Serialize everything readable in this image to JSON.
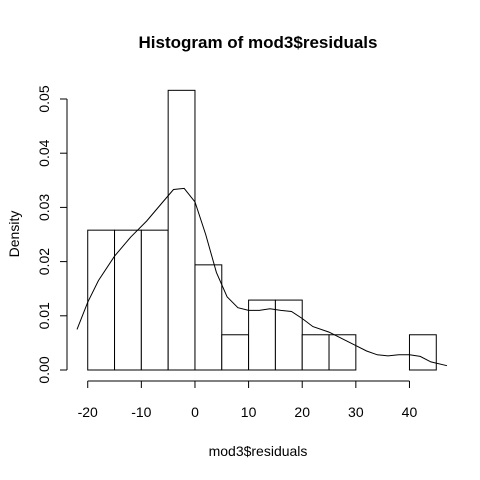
{
  "chart_data": {
    "type": "histogram",
    "title": "Histogram of mod3$residuals",
    "xlabel": "mod3$residuals",
    "ylabel": "Density",
    "xlim": [
      -22,
      47
    ],
    "ylim": [
      0,
      0.05
    ],
    "x_ticks": [
      -20,
      -10,
      0,
      10,
      20,
      30,
      40
    ],
    "y_ticks": [
      0.0,
      0.01,
      0.02,
      0.03,
      0.04,
      0.05
    ],
    "x_tick_labels": [
      "-20",
      "-10",
      "0",
      "10",
      "20",
      "30",
      "40"
    ],
    "y_tick_labels": [
      "0.00",
      "0.01",
      "0.02",
      "0.03",
      "0.04",
      "0.05"
    ],
    "grid": false,
    "legend": "none",
    "bars": [
      {
        "x0": -20,
        "x1": -15,
        "density": 0.0258
      },
      {
        "x0": -15,
        "x1": -10,
        "density": 0.0258
      },
      {
        "x0": -10,
        "x1": -5,
        "density": 0.0258
      },
      {
        "x0": -5,
        "x1": 0,
        "density": 0.0516
      },
      {
        "x0": 0,
        "x1": 5,
        "density": 0.0194
      },
      {
        "x0": 5,
        "x1": 10,
        "density": 0.0065
      },
      {
        "x0": 10,
        "x1": 15,
        "density": 0.0129
      },
      {
        "x0": 15,
        "x1": 20,
        "density": 0.0129
      },
      {
        "x0": 20,
        "x1": 25,
        "density": 0.0065
      },
      {
        "x0": 25,
        "x1": 30,
        "density": 0.0065
      },
      {
        "x0": 30,
        "x1": 35,
        "density": 0
      },
      {
        "x0": 35,
        "x1": 40,
        "density": 0
      },
      {
        "x0": 40,
        "x1": 45,
        "density": 0.0065
      }
    ],
    "density_curve": {
      "x": [
        -22,
        -20,
        -18,
        -15,
        -12,
        -9,
        -6,
        -4,
        -2,
        0,
        2,
        4,
        6,
        8,
        10,
        12,
        14,
        16,
        18,
        20,
        22,
        25,
        28,
        30,
        32,
        34,
        36,
        38,
        40,
        42,
        44,
        47
      ],
      "y": [
        0.0075,
        0.0125,
        0.0165,
        0.021,
        0.0245,
        0.0275,
        0.031,
        0.0333,
        0.0335,
        0.031,
        0.025,
        0.018,
        0.0135,
        0.0115,
        0.011,
        0.011,
        0.0113,
        0.011,
        0.0108,
        0.0095,
        0.008,
        0.007,
        0.0055,
        0.0045,
        0.0035,
        0.0028,
        0.0026,
        0.0028,
        0.0028,
        0.0025,
        0.0015,
        0.0008
      ]
    },
    "colors": {
      "bar_fill": "#ffffff",
      "bar_stroke": "#000000",
      "curve": "#000000",
      "background": "#ffffff"
    }
  }
}
